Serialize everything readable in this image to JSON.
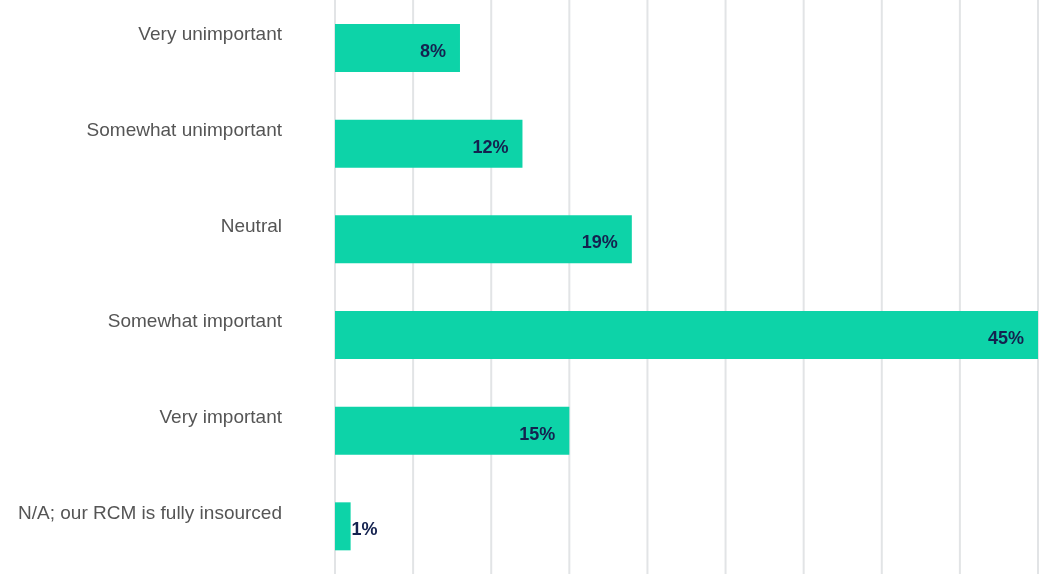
{
  "chart_data": {
    "type": "bar",
    "orientation": "horizontal",
    "categories": [
      "Very unimportant",
      "Somewhat unimportant",
      "Neutral",
      "Somewhat important",
      "Very important",
      "N/A; our RCM is fully insourced"
    ],
    "values": [
      8,
      12,
      19,
      45,
      15,
      1
    ],
    "value_labels": [
      "8%",
      "12%",
      "19%",
      "45%",
      "15%",
      "1%"
    ],
    "color": "#0dd3a8",
    "xlim": [
      0,
      45
    ],
    "grid": "x",
    "tick_labels": "y",
    "legend": false
  }
}
